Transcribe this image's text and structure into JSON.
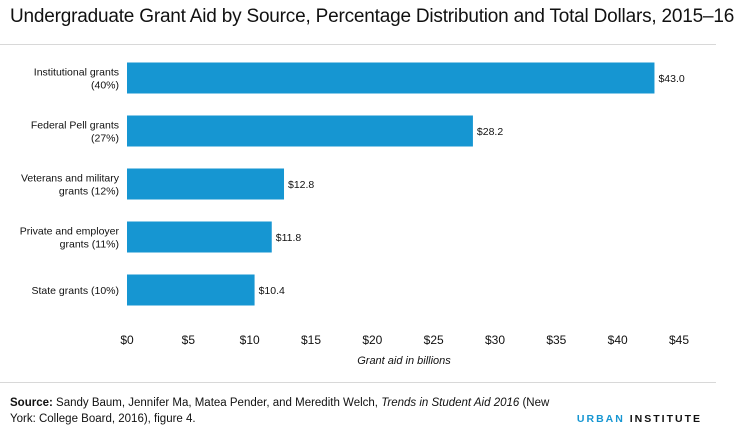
{
  "title": "Undergraduate Grant Aid by Source, Percentage Distribution and Total Dollars, 2015–16",
  "source": {
    "label": "Source:",
    "text_before": " Sandy Baum, Jennifer Ma, Matea Pender, and Meredith Welch, ",
    "italic": "Trends in Student Aid 2016",
    "text_after": " (New York: College Board, 2016), figure 4."
  },
  "logo": {
    "part1": "URBAN",
    "part2": "INSTITUTE"
  },
  "colors": {
    "bar": "#1696d2",
    "text": "#111111",
    "rule": "#d8d8d8",
    "logo_accent": "#1696d2"
  },
  "chart_data": {
    "type": "bar",
    "orientation": "horizontal",
    "title": "Undergraduate Grant Aid by Source, Percentage Distribution and Total Dollars, 2015–16",
    "xlabel": "Grant aid in billions",
    "ylabel": "",
    "xlim": [
      0,
      45
    ],
    "grid": false,
    "categories": [
      [
        "Institutional grants",
        "(40%)"
      ],
      [
        "Federal Pell grants",
        "(27%)"
      ],
      [
        "Veterans and military",
        "grants (12%)"
      ],
      [
        "Private and employer",
        "grants (11%)"
      ],
      [
        "State grants (10%)"
      ]
    ],
    "values": [
      43.0,
      28.2,
      12.8,
      11.8,
      10.4
    ],
    "value_labels": [
      "$43.0",
      "$28.2",
      "$12.8",
      "$11.8",
      "$10.4"
    ],
    "ticks": [
      0,
      5,
      10,
      15,
      20,
      25,
      30,
      35,
      40,
      45
    ],
    "tick_labels": [
      "$0",
      "$5",
      "$10",
      "$15",
      "$20",
      "$25",
      "$30",
      "$35",
      "$40",
      "$45"
    ]
  }
}
